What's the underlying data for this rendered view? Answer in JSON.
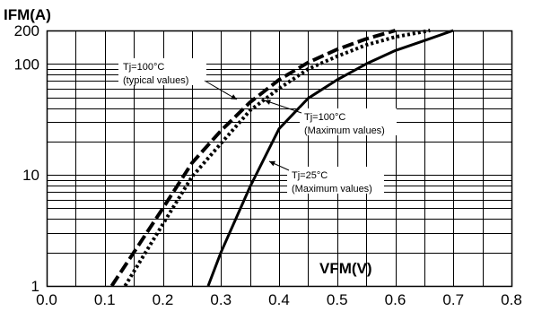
{
  "chart_data": {
    "type": "line",
    "title": "",
    "ylabel": "IFM(A)",
    "xlabel": "VFM(V)",
    "x_scale": "linear",
    "y_scale": "log",
    "xlim": [
      0.0,
      0.8
    ],
    "ylim": [
      1,
      200
    ],
    "x_ticks": [
      "0.0",
      "0.1",
      "0.2",
      "0.3",
      "0.4",
      "0.5",
      "0.6",
      "0.7",
      "0.8"
    ],
    "y_ticks": [
      "1",
      "10",
      "100",
      "200"
    ],
    "grid": true,
    "series": [
      {
        "style": "dashed",
        "color": "#000000",
        "x": [
          0.112,
          0.15,
          0.2,
          0.25,
          0.3,
          0.35,
          0.4,
          0.45,
          0.5,
          0.55,
          0.6
        ],
        "y": [
          1,
          2.0,
          5.0,
          12.8,
          25,
          45,
          72,
          103,
          135,
          168,
          200
        ]
      },
      {
        "style": "dotted",
        "color": "#000000",
        "x": [
          0.135,
          0.2,
          0.25,
          0.3,
          0.35,
          0.4,
          0.45,
          0.5,
          0.55,
          0.6,
          0.66
        ],
        "y": [
          1,
          3.6,
          9.6,
          19.2,
          38,
          60,
          90,
          117,
          148,
          175,
          200
        ]
      },
      {
        "style": "solid",
        "color": "#000000",
        "x": [
          0.278,
          0.3,
          0.35,
          0.4,
          0.45,
          0.5,
          0.55,
          0.6,
          0.65,
          0.7
        ],
        "y": [
          1,
          2.0,
          7.8,
          26,
          49,
          72,
          100,
          132,
          162,
          200
        ]
      }
    ],
    "annotations": [
      {
        "lines": [
          "Tj=100°C",
          "(typical values)"
        ],
        "x": 0.33,
        "y": 48
      },
      {
        "lines": [
          "Tj=100°C",
          "(Maximum values)"
        ],
        "x": 0.37,
        "y": 42
      },
      {
        "lines": [
          "Tj=25°C",
          "(Maximum values)"
        ],
        "x": 0.38,
        "y": 11
      }
    ]
  }
}
